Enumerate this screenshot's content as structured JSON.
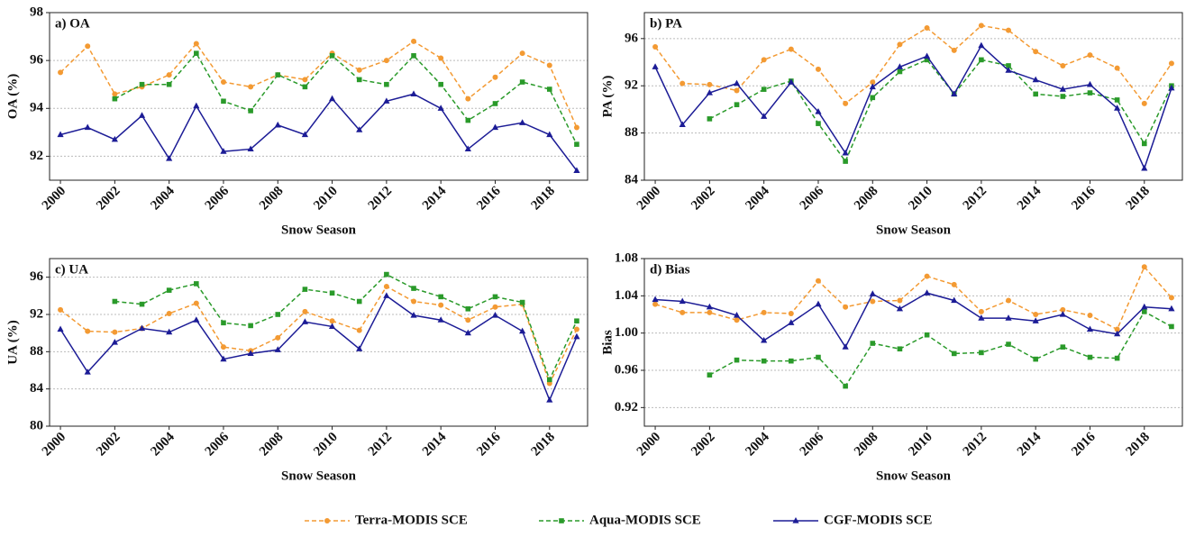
{
  "legend": [
    {
      "name": "Terra-MODIS SCE",
      "color": "#f39a33",
      "marker": "circle",
      "dash": true
    },
    {
      "name": "Aqua-MODIS SCE",
      "color": "#2a9a2a",
      "marker": "square",
      "dash": true
    },
    {
      "name": "CGF-MODIS SCE",
      "color": "#1c1c96",
      "marker": "triangle",
      "dash": false
    }
  ],
  "chart_data": [
    {
      "type": "line",
      "title": "a) OA",
      "xlabel": "Snow Season",
      "ylabel": "OA (%)",
      "x": [
        2000,
        2001,
        2002,
        2003,
        2004,
        2005,
        2006,
        2007,
        2008,
        2009,
        2010,
        2011,
        2012,
        2013,
        2014,
        2015,
        2016,
        2017,
        2018,
        2019
      ],
      "xlim": [
        1999.6,
        2019.4
      ],
      "xticks": [
        2000,
        2002,
        2004,
        2006,
        2008,
        2010,
        2012,
        2014,
        2016,
        2018
      ],
      "ylim": [
        91,
        98
      ],
      "yticks": [
        92,
        94,
        96,
        98
      ],
      "grid": true,
      "series": [
        {
          "values": [
            95.5,
            96.6,
            94.6,
            94.9,
            95.4,
            96.7,
            95.1,
            94.9,
            95.4,
            95.2,
            96.3,
            95.6,
            96.0,
            96.8,
            96.1,
            94.4,
            95.3,
            96.3,
            95.8,
            93.2
          ]
        },
        {
          "values": [
            null,
            null,
            94.4,
            95.0,
            95.0,
            96.3,
            94.3,
            93.9,
            95.4,
            94.9,
            96.2,
            95.2,
            95.0,
            96.2,
            95.0,
            93.5,
            94.2,
            95.1,
            94.8,
            92.5
          ]
        },
        {
          "values": [
            92.9,
            93.2,
            92.7,
            93.7,
            91.9,
            94.1,
            92.2,
            92.3,
            93.3,
            92.9,
            94.4,
            93.1,
            94.3,
            94.6,
            94.0,
            92.3,
            93.2,
            93.4,
            92.9,
            91.4
          ]
        }
      ]
    },
    {
      "type": "line",
      "title": "b) PA",
      "xlabel": "Snow Season",
      "ylabel": "PA (%)",
      "x": [
        2000,
        2001,
        2002,
        2003,
        2004,
        2005,
        2006,
        2007,
        2008,
        2009,
        2010,
        2011,
        2012,
        2013,
        2014,
        2015,
        2016,
        2017,
        2018,
        2019
      ],
      "xlim": [
        1999.6,
        2019.4
      ],
      "xticks": [
        2000,
        2002,
        2004,
        2006,
        2008,
        2010,
        2012,
        2014,
        2016,
        2018
      ],
      "ylim": [
        84,
        98.2
      ],
      "yticks": [
        84,
        88,
        92,
        96
      ],
      "grid": true,
      "series": [
        {
          "values": [
            95.3,
            92.2,
            92.1,
            91.6,
            94.2,
            95.1,
            93.4,
            90.5,
            92.3,
            95.5,
            96.9,
            95.0,
            97.1,
            96.7,
            94.9,
            93.7,
            94.6,
            93.5,
            90.5,
            93.9
          ]
        },
        {
          "values": [
            null,
            null,
            89.2,
            90.4,
            91.7,
            92.4,
            88.8,
            85.6,
            91.0,
            93.2,
            94.2,
            91.3,
            94.2,
            93.7,
            91.3,
            91.1,
            91.4,
            90.8,
            87.1,
            92.0
          ]
        },
        {
          "values": [
            93.6,
            88.7,
            91.4,
            92.2,
            89.4,
            92.3,
            89.8,
            86.3,
            91.9,
            93.6,
            94.5,
            91.3,
            95.4,
            93.3,
            92.5,
            91.7,
            92.1,
            90.1,
            85.0,
            91.8
          ]
        }
      ]
    },
    {
      "type": "line",
      "title": "c) UA",
      "xlabel": "Snow Season",
      "ylabel": "UA (%)",
      "x": [
        2000,
        2001,
        2002,
        2003,
        2004,
        2005,
        2006,
        2007,
        2008,
        2009,
        2010,
        2011,
        2012,
        2013,
        2014,
        2015,
        2016,
        2017,
        2018,
        2019
      ],
      "xlim": [
        1999.6,
        2019.4
      ],
      "xticks": [
        2000,
        2002,
        2004,
        2006,
        2008,
        2010,
        2012,
        2014,
        2016,
        2018
      ],
      "ylim": [
        80,
        98
      ],
      "yticks": [
        80,
        84,
        88,
        92,
        96
      ],
      "grid": true,
      "series": [
        {
          "values": [
            92.5,
            90.2,
            90.1,
            90.5,
            92.1,
            93.2,
            88.5,
            88.1,
            89.5,
            92.3,
            91.3,
            90.3,
            95.0,
            93.4,
            93.0,
            91.4,
            92.8,
            93.1,
            84.6,
            90.4
          ]
        },
        {
          "values": [
            null,
            null,
            93.4,
            93.1,
            94.6,
            95.3,
            91.1,
            90.8,
            92.0,
            94.7,
            94.3,
            93.4,
            96.3,
            94.8,
            93.9,
            92.6,
            93.9,
            93.3,
            85.0,
            91.3
          ]
        },
        {
          "values": [
            90.4,
            85.8,
            89.0,
            90.5,
            90.1,
            91.4,
            87.2,
            87.8,
            88.2,
            91.2,
            90.7,
            88.3,
            94.0,
            91.9,
            91.4,
            90.0,
            91.9,
            90.2,
            82.8,
            89.6
          ]
        }
      ]
    },
    {
      "type": "line",
      "title": "d) Bias",
      "xlabel": "Snow Season",
      "ylabel": "Bias",
      "x": [
        2000,
        2001,
        2002,
        2003,
        2004,
        2005,
        2006,
        2007,
        2008,
        2009,
        2010,
        2011,
        2012,
        2013,
        2014,
        2015,
        2016,
        2017,
        2018,
        2019
      ],
      "xlim": [
        1999.6,
        2019.4
      ],
      "xticks": [
        2000,
        2002,
        2004,
        2006,
        2008,
        2010,
        2012,
        2014,
        2016,
        2018
      ],
      "ylim": [
        0.9,
        1.08
      ],
      "yticks": [
        0.92,
        0.96,
        {
          "value": 1,
          "label": "1.00"
        },
        1.04,
        1.08
      ],
      "grid": true,
      "series": [
        {
          "values": [
            1.031,
            1.022,
            1.022,
            1.014,
            1.022,
            1.021,
            1.056,
            1.028,
            1.034,
            1.035,
            1.061,
            1.052,
            1.023,
            1.035,
            1.02,
            1.025,
            1.019,
            1.004,
            1.071,
            1.038
          ]
        },
        {
          "values": [
            null,
            null,
            0.955,
            0.971,
            0.97,
            0.97,
            0.974,
            0.943,
            0.989,
            0.983,
            0.998,
            0.978,
            0.979,
            0.988,
            0.972,
            0.985,
            0.974,
            0.973,
            1.023,
            1.007
          ]
        },
        {
          "values": [
            1.036,
            1.034,
            1.028,
            1.019,
            0.992,
            1.011,
            1.031,
            0.985,
            1.042,
            1.026,
            1.043,
            1.035,
            1.016,
            1.016,
            1.013,
            1.02,
            1.004,
            0.999,
            1.028,
            1.026
          ]
        }
      ]
    }
  ]
}
